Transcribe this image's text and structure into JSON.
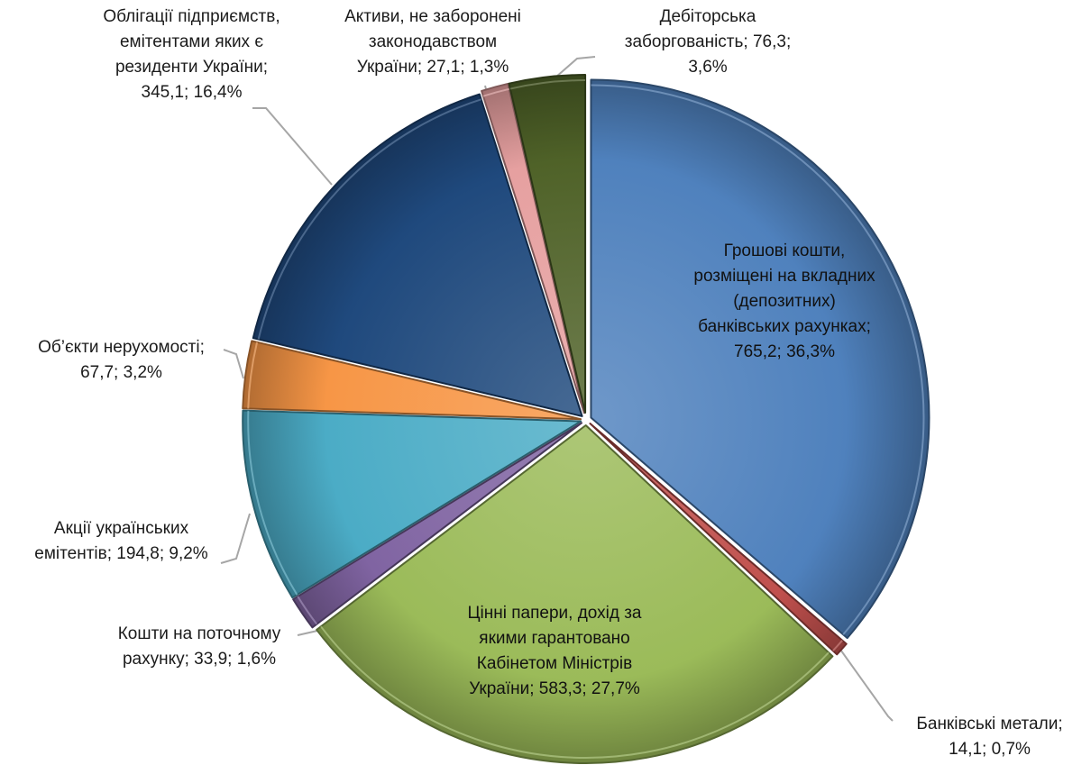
{
  "chart_data": {
    "type": "pie",
    "title": "",
    "legend": "none",
    "start_angle_deg": 0,
    "direction": "clockwise",
    "slices": [
      {
        "name": "Грошові кошти, розміщені на вкладних (депозитних) банківських рахунках",
        "value": 765.2,
        "percent": 36.3,
        "color": "#4f81bd",
        "label_lines": [
          "Грошові кошти,",
          "розміщені на вкладних",
          "(депозитних)",
          "банківських рахунках;",
          "765,2; 36,3%"
        ]
      },
      {
        "name": "Банківські метали",
        "value": 14.1,
        "percent": 0.7,
        "color": "#c0504d",
        "label_lines": [
          "Банківські метали;",
          "14,1; 0,7%"
        ]
      },
      {
        "name": "Цінні папери, дохід за якими гарантовано Кабінетом Міністрів України",
        "value": 583.3,
        "percent": 27.7,
        "color": "#9bbb59",
        "label_lines": [
          "Цінні папери, дохід за",
          "якими гарантовано",
          "Кабінетом Міністрів",
          "України; 583,3; 27,7%"
        ]
      },
      {
        "name": "Кошти на поточному рахунку",
        "value": 33.9,
        "percent": 1.6,
        "color": "#8064a2",
        "label_lines": [
          "Кошти на поточному",
          "рахунку; 33,9; 1,6%"
        ]
      },
      {
        "name": "Акції українських емітентів",
        "value": 194.8,
        "percent": 9.2,
        "color": "#4bacc6",
        "label_lines": [
          "Акції українських",
          "емітентів;  194,8; 9,2%"
        ]
      },
      {
        "name": "Об’єкти нерухомості",
        "value": 67.7,
        "percent": 3.2,
        "color": "#f79646",
        "label_lines": [
          "Об’єкти нерухомості;",
          "67,7; 3,2%"
        ]
      },
      {
        "name": "Облігації підприємств, емітентами яких є резиденти України",
        "value": 345.1,
        "percent": 16.4,
        "color": "#1f497d",
        "label_lines": [
          "Облігації підприємств,",
          "емітентами яких є",
          "резиденти України;",
          "345,1; 16,4%"
        ]
      },
      {
        "name": "Активи, не заборонені законодавством України",
        "value": 27.1,
        "percent": 1.3,
        "color": "#e6a0a0",
        "label_lines": [
          "Активи, не заборонені",
          "законодавством",
          "України; 27,1; 1,3%"
        ]
      },
      {
        "name": "Дебіторська заборгованість",
        "value": 76.3,
        "percent": 3.6,
        "color": "#4f6228",
        "label_lines": [
          "Дебіторська",
          "заборгованість; 76,3;",
          "3,6%"
        ]
      }
    ]
  }
}
